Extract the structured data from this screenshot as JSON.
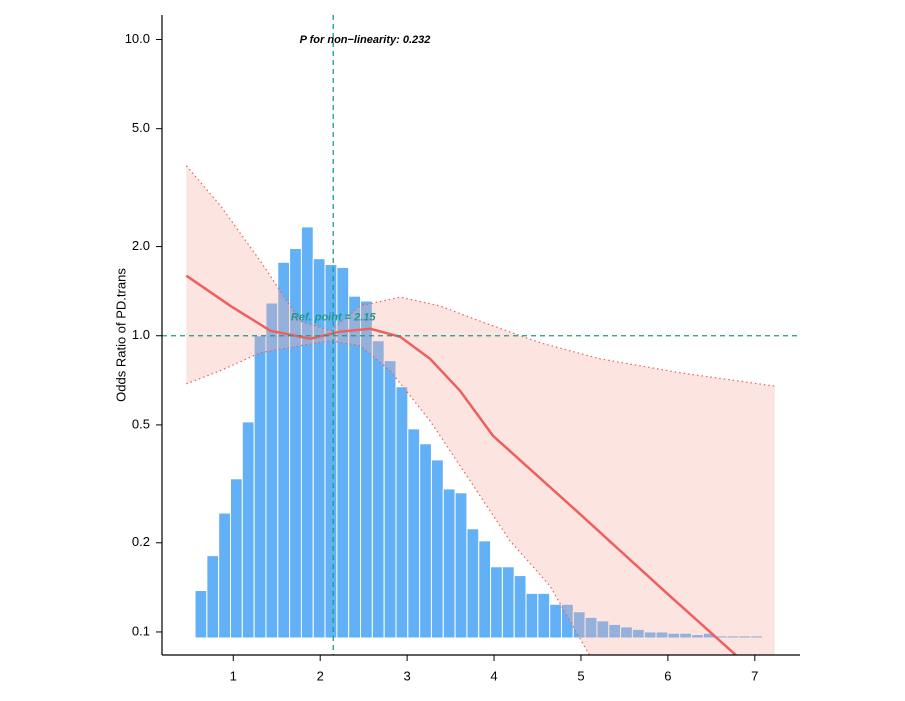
{
  "chart_data": {
    "type": "spline",
    "ylabel": "Odds Ratio of PD.trans",
    "annotation": "P for non−linearity: 0.232",
    "ref_label": "Ref. point = 2.15",
    "ref_x": 2.15,
    "ref_y": 1.0,
    "log_y": true,
    "xlim": [
      0.18,
      7.52
    ],
    "ylim": [
      0.0836,
      12.1
    ],
    "xticks": [
      1,
      2,
      3,
      4,
      5,
      6,
      7
    ],
    "yticks": [
      0.1,
      0.2,
      0.5,
      {
        "value": 1,
        "label": "1.0"
      },
      {
        "value": 2,
        "label": "2.0"
      },
      {
        "value": 5,
        "label": "5.0"
      },
      {
        "value": 10,
        "label": "10.0"
      }
    ],
    "ref_color": "#1f9a8a",
    "histogram": {
      "color": "#62b1f6",
      "bins": [
        0.56,
        0.696,
        0.832,
        0.968,
        1.104,
        1.24,
        1.376,
        1.512,
        1.648,
        1.784,
        1.92,
        2.056,
        2.192,
        2.328,
        2.464,
        2.6,
        2.736,
        2.872,
        3.008,
        3.144,
        3.28,
        3.416,
        3.552,
        3.688,
        3.824,
        3.96,
        4.096,
        4.232,
        4.368,
        4.504,
        4.64,
        4.776,
        4.912,
        5.048,
        5.184,
        5.32,
        5.456,
        5.592,
        5.728,
        5.864,
        6.0,
        6.136,
        6.272,
        6.408,
        6.544,
        6.68,
        6.816,
        6.952,
        7.088
      ],
      "values": [
        0.138,
        0.181,
        0.252,
        0.329,
        0.512,
        1.0,
        1.29,
        1.77,
        1.97,
        2.33,
        1.82,
        1.74,
        1.7,
        1.36,
        1.31,
        0.962,
        0.824,
        0.673,
        0.485,
        0.432,
        0.381,
        0.304,
        0.295,
        0.223,
        0.203,
        0.166,
        0.166,
        0.155,
        0.135,
        0.135,
        0.124,
        0.124,
        0.117,
        0.112,
        0.109,
        0.106,
        0.104,
        0.102,
        0.1,
        0.1,
        0.099,
        0.099,
        0.098,
        0.099,
        0.097,
        0.097,
        0.097,
        0.097
      ]
    },
    "curve": {
      "color": "#ef5f5c",
      "x": [
        0.46,
        0.966,
        1.425,
        1.885,
        2.23,
        2.575,
        2.92,
        3.264,
        3.609,
        3.989,
        4.989,
        5.989,
        6.793
      ],
      "values": [
        1.595,
        1.262,
        1.04,
        0.977,
        1.032,
        1.056,
        0.992,
        0.836,
        0.652,
        0.459,
        0.25,
        0.135,
        0.083
      ]
    },
    "upper": {
      "x": [
        0.46,
        0.851,
        1.31,
        1.77,
        2.115,
        2.46,
        2.92,
        3.379,
        3.839,
        4.529,
        5.218,
        6.138,
        7.23
      ],
      "values": [
        3.75,
        2.75,
        1.79,
        1.12,
        1.04,
        1.26,
        1.35,
        1.26,
        1.12,
        0.947,
        0.836,
        0.75,
        0.676
      ]
    },
    "lower": {
      "x": [
        0.46,
        0.851,
        1.31,
        1.77,
        2.115,
        2.46,
        2.805,
        3.264,
        3.724,
        4.184,
        4.644,
        5.103
      ],
      "values": [
        0.688,
        0.762,
        0.876,
        0.925,
        0.962,
        0.925,
        0.762,
        0.516,
        0.324,
        0.203,
        0.143,
        0.083
      ]
    },
    "ribbon_color": "#f7b2aa"
  }
}
